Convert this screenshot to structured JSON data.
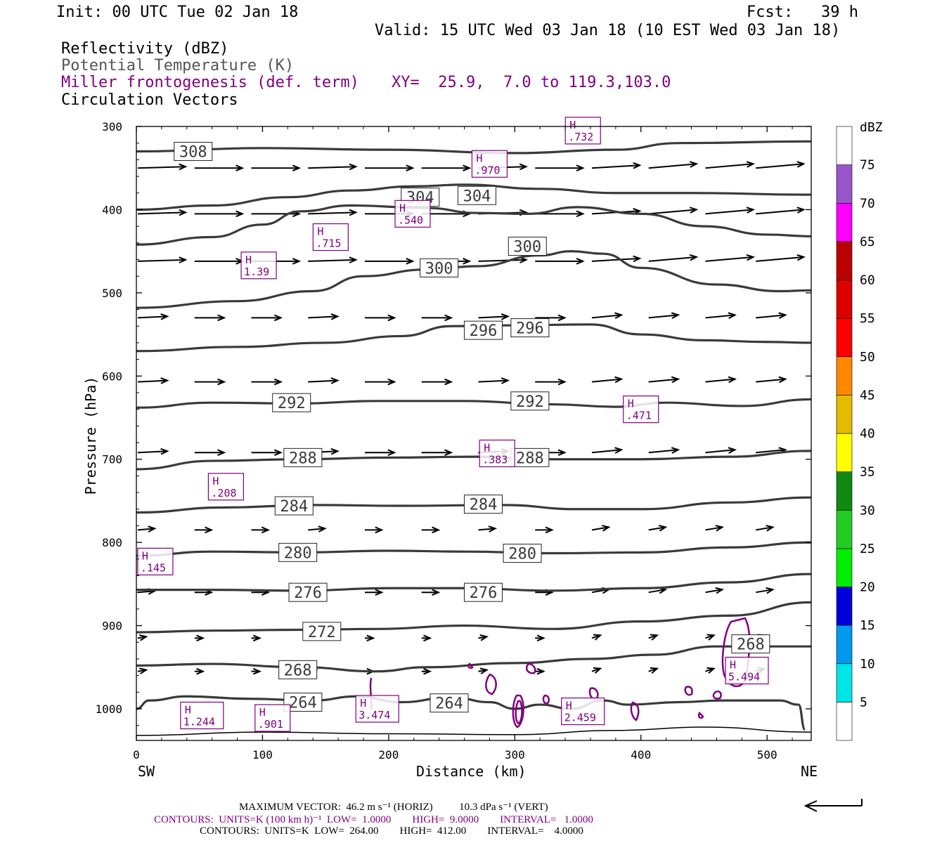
{
  "header": {
    "init": "Init: 00 UTC Tue 02 Jan 18",
    "fcst": "Fcst:   39 h",
    "valid": "Valid: 15 UTC Wed 03 Jan 18 (10 EST Wed 03 Jan 18)",
    "field1": "Reflectivity (dBZ)",
    "field2": "Potential Temperature (K)",
    "field3": "Miller frontogenesis (def. term)",
    "xy": "XY=  25.9,  7.0 to 119.3,103.0",
    "field4": "Circulation Vectors"
  },
  "chart_data": {
    "type": "cross-section",
    "xlabel": "Distance (km)",
    "ylabel": "Pressure (hPa)",
    "xlim": [
      0,
      535
    ],
    "ylim": [
      1038,
      300
    ],
    "x_ticks": [
      "0",
      "100",
      "200",
      "300",
      "400",
      "500"
    ],
    "y_ticks": [
      "300",
      "400",
      "500",
      "600",
      "700",
      "800",
      "900",
      "1000"
    ],
    "left_end_label": "SW",
    "right_end_label": "NE",
    "colorbar": {
      "title": "dBZ",
      "labels": [
        "5",
        "10",
        "15",
        "20",
        "25",
        "30",
        "35",
        "40",
        "45",
        "50",
        "55",
        "60",
        "65",
        "70",
        "75"
      ],
      "colors": [
        "#ffffff",
        "#00e5e5",
        "#0099ee",
        "#0000dd",
        "#00ee00",
        "#22cc22",
        "#118811",
        "#ffff00",
        "#e5bb00",
        "#ff8800",
        "#ff0000",
        "#dd0000",
        "#bb0000",
        "#ff00ff",
        "#9955cc",
        "#ffffff"
      ]
    },
    "theta_labels": [
      {
        "text": "308",
        "x": 45,
        "p": 330
      },
      {
        "text": "304",
        "x": 225,
        "p": 385
      },
      {
        "text": "304",
        "x": 270,
        "p": 383
      },
      {
        "text": "300",
        "x": 310,
        "p": 444
      },
      {
        "text": "300",
        "x": 240,
        "p": 470
      },
      {
        "text": "296",
        "x": 275,
        "p": 545
      },
      {
        "text": "296",
        "x": 312,
        "p": 542
      },
      {
        "text": "292",
        "x": 123,
        "p": 632
      },
      {
        "text": "292",
        "x": 312,
        "p": 630
      },
      {
        "text": "288",
        "x": 132,
        "p": 698
      },
      {
        "text": "288",
        "x": 312,
        "p": 698
      },
      {
        "text": "284",
        "x": 125,
        "p": 756
      },
      {
        "text": "284",
        "x": 275,
        "p": 754
      },
      {
        "text": "280",
        "x": 128,
        "p": 812
      },
      {
        "text": "280",
        "x": 306,
        "p": 813
      },
      {
        "text": "276",
        "x": 136,
        "p": 860
      },
      {
        "text": "276",
        "x": 275,
        "p": 860
      },
      {
        "text": "272",
        "x": 147,
        "p": 907
      },
      {
        "text": "268",
        "x": 128,
        "p": 953
      },
      {
        "text": "268",
        "x": 487,
        "p": 922
      },
      {
        "text": "264",
        "x": 132,
        "p": 992
      },
      {
        "text": "264",
        "x": 248,
        "p": 993
      }
    ],
    "frontogenesis_highs": [
      {
        "label": "H",
        "value": ".732",
        "x": 354,
        "p": 305
      },
      {
        "label": "H",
        "value": ".970",
        "x": 280,
        "p": 345
      },
      {
        "label": "H",
        "value": ".540",
        "x": 219,
        "p": 405
      },
      {
        "label": "H",
        "value": ".715",
        "x": 154,
        "p": 433
      },
      {
        "label": "H",
        "value": "1.39",
        "x": 97,
        "p": 467
      },
      {
        "label": "H",
        "value": ".471",
        "x": 400,
        "p": 640
      },
      {
        "label": "H",
        "value": ".383",
        "x": 286,
        "p": 693
      },
      {
        "label": "H",
        "value": ".208",
        "x": 71,
        "p": 733
      },
      {
        "label": "H",
        "value": ".145",
        "x": 15,
        "p": 823
      },
      {
        "label": "H",
        "value": "5.494",
        "x": 484,
        "p": 954
      },
      {
        "label": "H",
        "value": "3.474",
        "x": 191,
        "p": 1000
      },
      {
        "label": "H",
        "value": "2.459",
        "x": 354,
        "p": 1003
      },
      {
        "label": "H",
        "value": "1.244",
        "x": 52,
        "p": 1008
      },
      {
        "label": "H",
        "value": ".901",
        "x": 108,
        "p": 1011
      }
    ]
  },
  "footer": {
    "line1": "MAXIMUM VECTOR:  46.2 m s⁻¹ (HORIZ)          10.3 dPa s⁻¹ (VERT)",
    "line2": "CONTOURS:  UNITS=K (100 km h)⁻¹  LOW=  1.0000        HIGH=  9.0000        INTERVAL=   1.0000",
    "line3": "CONTOURS:  UNITS=K  LOW=  264.00        HIGH=  412.00        INTERVAL=    4.0000"
  },
  "colors": {
    "theta": "#3a3a3a",
    "frontogenesis": "#800080",
    "vectors": "#000000"
  }
}
